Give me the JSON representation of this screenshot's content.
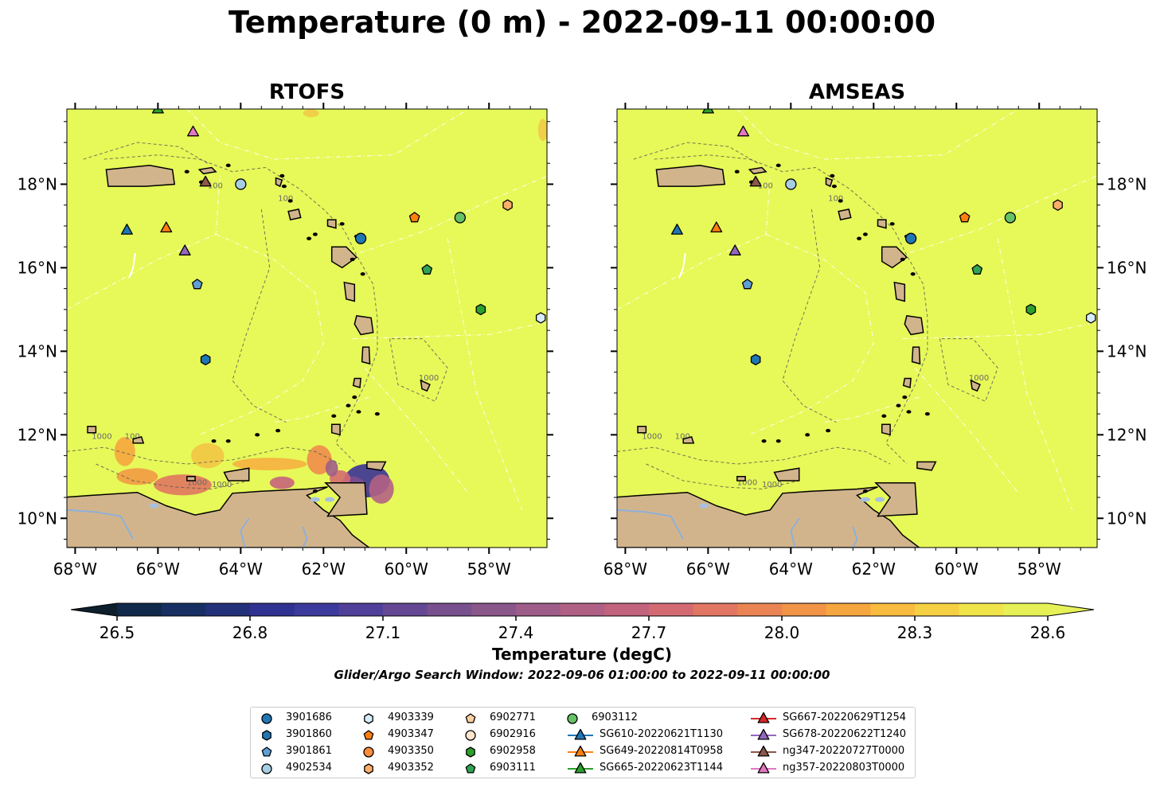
{
  "title": "Temperature (0 m) - 2022-09-11 00:00:00",
  "panels": [
    {
      "title": "RTOFS"
    },
    {
      "title": "AMSEAS"
    }
  ],
  "lat_ticks": [
    "10°N",
    "12°N",
    "14°N",
    "16°N",
    "18°N"
  ],
  "lon_ticks": [
    "68°W",
    "66°W",
    "64°W",
    "62°W",
    "60°W",
    "58°W"
  ],
  "contour_labels": [
    "100",
    "1000"
  ],
  "colorbar": {
    "label": "Temperature (degC)",
    "ticks": [
      "26.5",
      "26.8",
      "27.1",
      "27.4",
      "27.7",
      "28.0",
      "28.3",
      "28.6"
    ],
    "vmin": 26.5,
    "vmax": 28.6,
    "colors": [
      "#0d1f2d",
      "#10294a",
      "#182f63",
      "#23307a",
      "#2f3291",
      "#3c3a9c",
      "#51409a",
      "#654894",
      "#78508e",
      "#8a578a",
      "#9e5d88",
      "#b06084",
      "#c2637d",
      "#d36a72",
      "#e17663",
      "#eb8454",
      "#f19448",
      "#f6a63f",
      "#f8bb3f",
      "#f6d043",
      "#f0e44b",
      "#e6f158"
    ]
  },
  "search_window": "Glider/Argo Search Window: 2022-09-06 01:00:00 to 2022-09-11 00:00:00",
  "legend": [
    {
      "label": "3901686",
      "marker": "circle",
      "color": "#1f77b4"
    },
    {
      "label": "3901860",
      "marker": "hexagon",
      "color": "#1f77b4"
    },
    {
      "label": "3901861",
      "marker": "pentagon",
      "color": "#5f9fd6"
    },
    {
      "label": "4902534",
      "marker": "circle",
      "color": "#a6cee3"
    },
    {
      "label": "4903339",
      "marker": "hexagon",
      "color": "#d6ecfa"
    },
    {
      "label": "4903347",
      "marker": "pentagon",
      "color": "#ff7f0e"
    },
    {
      "label": "4903350",
      "marker": "circle",
      "color": "#fd8d3c"
    },
    {
      "label": "4903352",
      "marker": "hexagon",
      "color": "#fdae6b"
    },
    {
      "label": "6902771",
      "marker": "pentagon",
      "color": "#fdd0a2"
    },
    {
      "label": "6902916",
      "marker": "circle",
      "color": "#fee6ce"
    },
    {
      "label": "6902958",
      "marker": "hexagon",
      "color": "#2ca02c"
    },
    {
      "label": "6903111",
      "marker": "pentagon",
      "color": "#31a354"
    },
    {
      "label": "6903112",
      "marker": "circle",
      "color": "#66c266"
    },
    {
      "label": "SG610-20220621T1130",
      "marker": "triangle",
      "color": "#1f77b4"
    },
    {
      "label": "SG649-20220814T0958",
      "marker": "triangle",
      "color": "#ff7f0e"
    },
    {
      "label": "SG665-20220623T1144",
      "marker": "triangle",
      "color": "#2ca02c"
    },
    {
      "label": "SG667-20220629T1254",
      "marker": "triangle",
      "color": "#d62728"
    },
    {
      "label": "SG678-20220622T1240",
      "marker": "triangle",
      "color": "#9467bd"
    },
    {
      "label": "ng347-20220727T0000",
      "marker": "triangle",
      "color": "#8c564b"
    },
    {
      "label": "ng357-20220803T0000",
      "marker": "triangle",
      "color": "#e377c2"
    }
  ],
  "chart_data": {
    "type": "map",
    "variable": "Temperature (degC)",
    "depth": "0 m",
    "time": "2022-09-11 00:00:00",
    "extent": {
      "lon": [
        -68.2,
        -56.6
      ],
      "lat": [
        9.3,
        19.8
      ]
    },
    "platforms": [
      {
        "id": "3901686",
        "lon": -61.1,
        "lat": 16.7
      },
      {
        "id": "3901860",
        "lon": -64.85,
        "lat": 13.8
      },
      {
        "id": "3901861",
        "lon": -65.05,
        "lat": 15.6
      },
      {
        "id": "4902534",
        "lon": -64.0,
        "lat": 18.0
      },
      {
        "id": "4903339",
        "lon": -56.75,
        "lat": 14.8
      },
      {
        "id": "4903347",
        "lon": -59.8,
        "lat": 17.2
      },
      {
        "id": "4903352",
        "lon": -57.55,
        "lat": 17.5
      },
      {
        "id": "6902958",
        "lon": -58.2,
        "lat": 15.0
      },
      {
        "id": "6903111",
        "lon": -59.5,
        "lat": 15.95
      },
      {
        "id": "6903112",
        "lon": -58.7,
        "lat": 17.2
      },
      {
        "id": "SG610-20220621T1130",
        "lon": -66.75,
        "lat": 16.9
      },
      {
        "id": "SG649-20220814T0958",
        "lon": -65.8,
        "lat": 16.95
      },
      {
        "id": "SG665-20220623T1144",
        "lon": -66.0,
        "lat": 19.8
      },
      {
        "id": "SG678-20220622T1240",
        "lon": -65.35,
        "lat": 16.4
      },
      {
        "id": "ng347-20220727T0000",
        "lon": -64.85,
        "lat": 18.05
      },
      {
        "id": "ng357-20220803T0000",
        "lon": -65.15,
        "lat": 19.25
      }
    ]
  }
}
